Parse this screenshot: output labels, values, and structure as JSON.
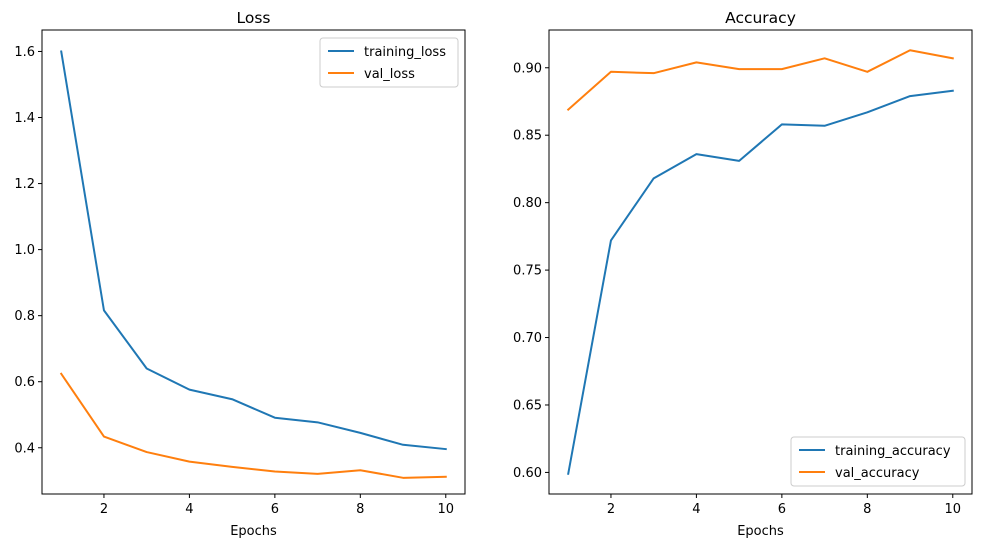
{
  "chart_data": [
    {
      "type": "line",
      "title": "Loss",
      "xlabel": "Epochs",
      "ylabel": "",
      "x": [
        1,
        2,
        3,
        4,
        5,
        6,
        7,
        8,
        9,
        10
      ],
      "xlim": [
        0.55,
        10.45
      ],
      "ylim": [
        0.26,
        1.665
      ],
      "xticks": [
        2,
        4,
        6,
        8,
        10
      ],
      "xtick_labels": [
        "2",
        "4",
        "6",
        "8",
        "10"
      ],
      "yticks": [
        0.4,
        0.6,
        0.8,
        1.0,
        1.2,
        1.4,
        1.6
      ],
      "ytick_labels": [
        "0.4",
        "0.6",
        "0.8",
        "1.0",
        "1.2",
        "1.4",
        "1.6"
      ],
      "grid": false,
      "legend_position": "upper-right",
      "series": [
        {
          "name": "training_loss",
          "color": "#1f77b4",
          "values": [
            1.6,
            0.816,
            0.64,
            0.576,
            0.547,
            0.491,
            0.477,
            0.445,
            0.409,
            0.396
          ]
        },
        {
          "name": "val_loss",
          "color": "#ff7f0e",
          "values": [
            0.624,
            0.434,
            0.387,
            0.358,
            0.342,
            0.328,
            0.321,
            0.332,
            0.309,
            0.312
          ]
        }
      ]
    },
    {
      "type": "line",
      "title": "Accuracy",
      "xlabel": "Epochs",
      "ylabel": "",
      "x": [
        1,
        2,
        3,
        4,
        5,
        6,
        7,
        8,
        9,
        10
      ],
      "xlim": [
        0.55,
        10.45
      ],
      "ylim": [
        0.584,
        0.928
      ],
      "xticks": [
        2,
        4,
        6,
        8,
        10
      ],
      "xtick_labels": [
        "2",
        "4",
        "6",
        "8",
        "10"
      ],
      "yticks": [
        0.6,
        0.65,
        0.7,
        0.75,
        0.8,
        0.85,
        0.9
      ],
      "ytick_labels": [
        "0.60",
        "0.65",
        "0.70",
        "0.75",
        "0.80",
        "0.85",
        "0.90"
      ],
      "grid": false,
      "legend_position": "lower-right",
      "series": [
        {
          "name": "training_accuracy",
          "color": "#1f77b4",
          "values": [
            0.599,
            0.772,
            0.818,
            0.836,
            0.831,
            0.858,
            0.857,
            0.867,
            0.879,
            0.883
          ]
        },
        {
          "name": "val_accuracy",
          "color": "#ff7f0e",
          "values": [
            0.869,
            0.897,
            0.896,
            0.904,
            0.899,
            0.899,
            0.907,
            0.897,
            0.913,
            0.907
          ]
        }
      ]
    }
  ]
}
